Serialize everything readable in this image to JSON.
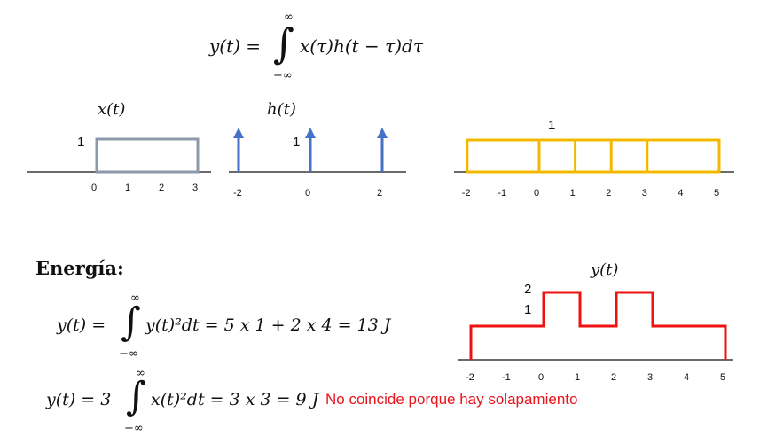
{
  "formula": {
    "lhs": "y(t) =",
    "upper": "∞",
    "lower": "−∞",
    "integrand": "x(τ)h(t − τ)dτ"
  },
  "x_plot": {
    "label": "x(t)",
    "amplitude": "1",
    "ticks": [
      "0",
      "1",
      "2",
      "3"
    ],
    "rect": {
      "start": 0,
      "end": 3,
      "height": 1
    },
    "color": "#8c99aa"
  },
  "h_plot": {
    "label": "h(t)",
    "amplitude": "1",
    "ticks": [
      "-2",
      "0",
      "2"
    ],
    "impulses": [
      -2,
      0,
      2
    ],
    "color": "#4472c4"
  },
  "conv_plot": {
    "amplitude": "1",
    "ticks": [
      "-2",
      "-1",
      "0",
      "1",
      "2",
      "3",
      "4",
      "5"
    ],
    "edges": [
      -2,
      0,
      1,
      2,
      3,
      5
    ],
    "color": "#f5b800"
  },
  "energy": {
    "heading": "Energía:",
    "eq1": {
      "lhs": "y(t) =",
      "upper": "∞",
      "lower": "−∞",
      "integrand": "y(t)²dt = 5 x 1 + 2 x 4 = 13  J"
    },
    "eq2": {
      "lhs": "y(t) =  3",
      "upper": "∞",
      "lower": "−∞",
      "integrand": "x(t)²dt = 3 x 3 = 9 J",
      "note": "No coincide porque hay solapamiento"
    }
  },
  "y_plot": {
    "label": "y(t)",
    "amplitudes": [
      "2",
      "1"
    ],
    "ticks": [
      "-2",
      "-1",
      "0",
      "1",
      "2",
      "3",
      "4",
      "5"
    ],
    "steps": [
      {
        "from": -2,
        "to": 0,
        "value": 1
      },
      {
        "from": 0,
        "to": 1,
        "value": 2
      },
      {
        "from": 1,
        "to": 2,
        "value": 1
      },
      {
        "from": 2,
        "to": 3,
        "value": 2
      },
      {
        "from": 3,
        "to": 5,
        "value": 1
      }
    ],
    "color": "#ee1111"
  }
}
